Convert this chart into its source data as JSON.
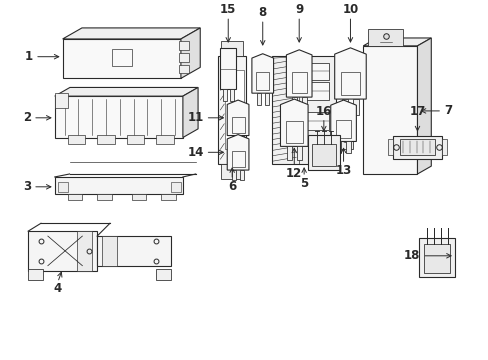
{
  "bg_color": "#ffffff",
  "line_color": "#2a2a2a",
  "lw": 0.8,
  "fig_w": 4.89,
  "fig_h": 3.6,
  "dpi": 100
}
